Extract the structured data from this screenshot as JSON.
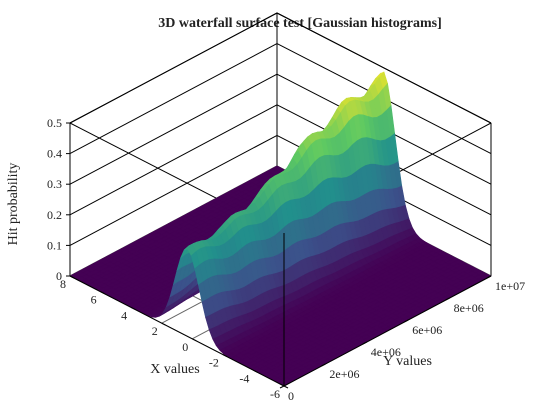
{
  "chart_data": {
    "type": "surface",
    "title": "3D waterfall surface test [Gaussian histograms]",
    "xlabel": "X values",
    "ylabel": "Y values",
    "zlabel": "Hit probability",
    "xlim": [
      -6,
      8
    ],
    "ylim": [
      0,
      10000000
    ],
    "zlim": [
      0,
      0.5
    ],
    "x_ticks": [
      "-6",
      "-4",
      "-2",
      "0",
      "2",
      "4",
      "6",
      "8"
    ],
    "y_ticks": [
      "0",
      "2e+06",
      "4e+06",
      "6e+06",
      "8e+06",
      "1e+07"
    ],
    "z_ticks": [
      "0",
      "0.1",
      "0.2",
      "0.3",
      "0.4",
      "0.5"
    ],
    "colormap": [
      "#440154",
      "#3b528b",
      "#21918c",
      "#5ec962",
      "#fde725"
    ],
    "grid": true,
    "series": [
      {
        "y": 0,
        "mean": 0.3,
        "peak": 0.28
      },
      {
        "y": 2000000,
        "mean": 0.45,
        "peak": 0.29
      },
      {
        "y": 4000000,
        "mean": 0.6,
        "peak": 0.33
      },
      {
        "y": 6000000,
        "mean": 0.75,
        "peak": 0.4
      },
      {
        "y": 8000000,
        "mean": 0.9,
        "peak": 0.45
      },
      {
        "y": 10000000,
        "mean": 1.05,
        "peak": 0.47
      }
    ]
  }
}
